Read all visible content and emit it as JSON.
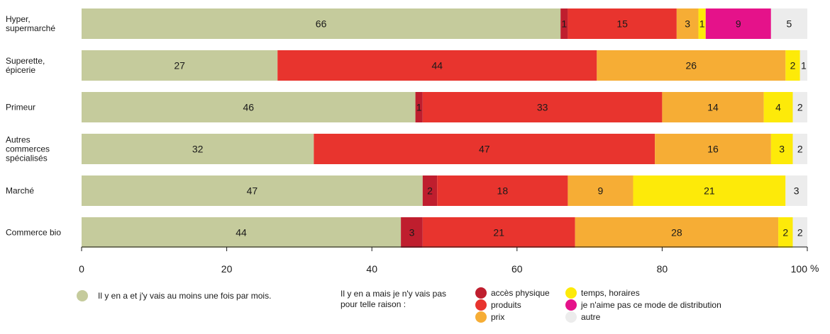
{
  "chart_data": {
    "type": "bar",
    "orientation": "horizontal",
    "stacked": true,
    "xlim": [
      0,
      100
    ],
    "xticks": [
      0,
      20,
      40,
      60,
      80,
      100
    ],
    "x_unit": "%",
    "categories": [
      "Hyper,\nsupermarché",
      "Superette,\népicerie",
      "Primeur",
      "Autres\ncommerces\nspécialisés",
      "Marché",
      "Commerce bio"
    ],
    "series": [
      {
        "key": "vais",
        "color": "#c5cb9c",
        "text_color": "#1a1a1a",
        "values": [
          66,
          27,
          46,
          32,
          47,
          44
        ]
      },
      {
        "key": "acces",
        "color": "#bf1e2e",
        "text_color": "#1a1a1a",
        "values": [
          1,
          0,
          1,
          0,
          2,
          3
        ]
      },
      {
        "key": "produits",
        "color": "#e8342e",
        "text_color": "#1a1a1a",
        "values": [
          15,
          44,
          33,
          47,
          18,
          21
        ]
      },
      {
        "key": "prix",
        "color": "#f6ad35",
        "text_color": "#1a1a1a",
        "values": [
          3,
          26,
          14,
          16,
          9,
          28
        ]
      },
      {
        "key": "temps",
        "color": "#fdea09",
        "text_color": "#1a1a1a",
        "values": [
          1,
          2,
          4,
          3,
          21,
          2
        ]
      },
      {
        "key": "naime",
        "color": "#e5128a",
        "text_color": "#1a1a1a",
        "values": [
          9,
          0,
          0,
          0,
          0,
          0
        ]
      },
      {
        "key": "autre",
        "color": "#ececec",
        "text_color": "#1a1a1a",
        "values": [
          5,
          1,
          2,
          2,
          3,
          2
        ]
      }
    ]
  },
  "legend": {
    "main_label": "Il y en a et j'y vais au moins une fois par mois.",
    "main_color": "#c5cb9c",
    "heading_line1": "Il y en a mais je n'y vais pas",
    "heading_line2": "pour telle raison :",
    "items": [
      {
        "label": "accès physique",
        "color": "#bf1e2e"
      },
      {
        "label": "produits",
        "color": "#e8342e"
      },
      {
        "label": "prix",
        "color": "#f6ad35"
      },
      {
        "label": "temps, horaires",
        "color": "#fdea09"
      },
      {
        "label": "je n'aime pas ce mode de distribution",
        "color": "#e5128a"
      },
      {
        "label": "autre",
        "color": "#ececec"
      }
    ]
  }
}
